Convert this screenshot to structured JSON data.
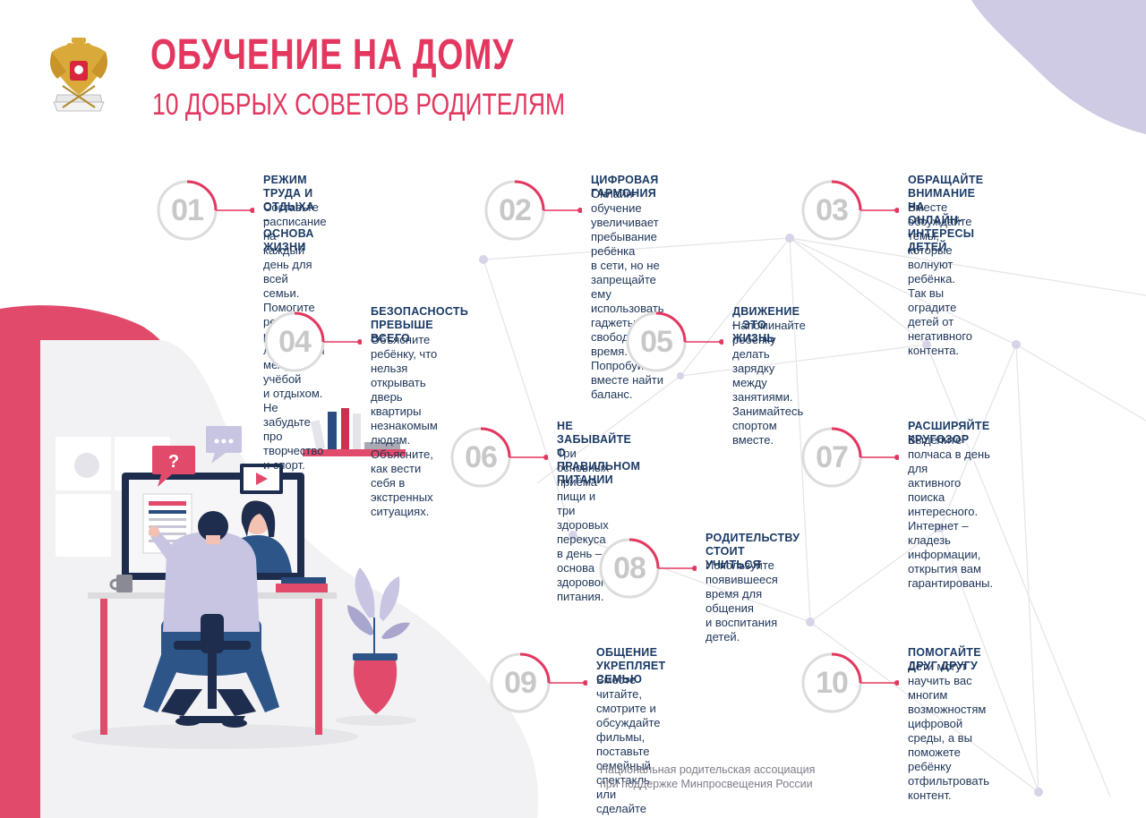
{
  "header": {
    "title": "ОБУЧЕНИЕ НА ДОМУ",
    "subtitle": "10 ДОБРЫХ СОВЕТОВ РОДИТЕЛЯМ"
  },
  "colors": {
    "accent": "#e3375f",
    "navy": "#1a3a66",
    "number_gray": "#c8c8c8",
    "lavender": "#cfcbe4"
  },
  "tips": [
    {
      "number": "01",
      "title": "РЕЖИМ ТРУДА И ОТДЫХА –\nОСНОВА ЖИЗНИ",
      "text": "Составьте расписание на\nкаждый день для всей семьи.\nПомогите ребёнку распреде-\nлить время между учёбой\nи отдыхом. Не забудьте про\nтворчество и спорт."
    },
    {
      "number": "02",
      "title": "ЦИФРОВАЯ ГАРМОНИЯ",
      "text": "Онлайн-обучение увеличивает\nпребывание ребёнка\nв сети, но не запрещайте ему\nиспользовать гаджеты в\nсвободное время. Попробуйте\nвместе найти баланс."
    },
    {
      "number": "03",
      "title": "ОБРАЩАЙТЕ ВНИМАНИЕ НА\nОНЛАЙН-ИНТЕРЕСЫ ДЕТЕЙ",
      "text": "Вместе обсуждайте темы,\nкоторые волнуют ребёнка.\nТак вы оградите детей от\nнегативного контента."
    },
    {
      "number": "04",
      "title": "БЕЗОПАСНОСТЬ\nПРЕВЫШЕ ВСЕГО",
      "text": "Объясните ребёнку, что\nнельзя открывать дверь\nквартиры незнакомым\nлюдям. Объясните, как вести\nсебя в экстренных ситуациях."
    },
    {
      "number": "05",
      "title": "ДВИЖЕНИЕ – ЭТО ЖИЗНЬ",
      "text": "Напоминайте ребёнку делать\nзарядку между занятиями.\nЗанимайтесь спортом вместе."
    },
    {
      "number": "06",
      "title": "НЕ ЗАБЫВАЙТЕ\nО ПРАВИЛЬНОМ ПИТАНИИ",
      "text": "Три основных приёма пищи и\nтри здоровых перекуса в день –\nоснова здорового питания."
    },
    {
      "number": "07",
      "title": "РАСШИРЯЙТЕ КРУГОЗОР",
      "text": "Выделите полчаса в день для\nактивного поиска интересного.\nИнтернет – кладезь\nинформации,  открытия вам\nгарантированы."
    },
    {
      "number": "08",
      "title": "РОДИТЕЛЬСТВУ\nСТОИТ УЧИТЬСЯ",
      "text": "Используйте появившееся\nвремя для общения\nи воспитания детей."
    },
    {
      "number": "09",
      "title": "ОБЩЕНИЕ УКРЕПЛЯЕТ\nСЕМЬЮ",
      "text": "Вместе читайте, смотрите и\nобсуждайте фильмы,\nпоставьте семейный\nспектакль или сделайте\nсемейный альбом."
    },
    {
      "number": "10",
      "title": "ПОМОГАЙТЕ ДРУГ ДРУГУ",
      "text": "Дети могут научить вас\nмногим возможностям\nцифровой среды, а вы\nпоможете ребёнку\nотфильтровать контент."
    }
  ],
  "footer": {
    "text": "Национальная родительская ассоциация\nпри поддержке Минпросвещения России"
  },
  "illustration": {
    "icons": [
      "question-bubble-icon",
      "chat-dots-bubble-icon",
      "video-play-icon",
      "coffee-mug-icon",
      "books-shelf-icon",
      "potted-plant-icon"
    ]
  }
}
